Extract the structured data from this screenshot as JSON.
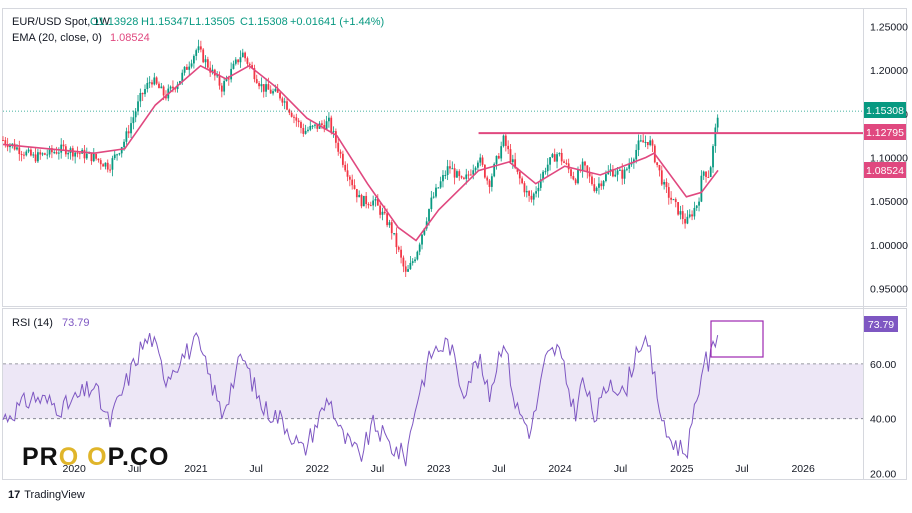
{
  "header": {
    "symbol_line": "EUR/USD Spot, 1W",
    "open": "O1.13928",
    "high": "H1.15347",
    "low": "L1.13505",
    "close": "C1.15308",
    "change": "+0.01641 (+1.44%)",
    "ema_label": "EMA (20, close, 0)",
    "ema_value": "1.08524"
  },
  "rsi_header": {
    "label": "RSI (14)",
    "value": "73.79"
  },
  "price_badges": {
    "last": "1.15308",
    "resistance": "1.12795",
    "ema": "1.08524"
  },
  "rsi_badge": "73.79",
  "branding": {
    "logo_left": "PR",
    "logo_mid": "O O",
    "logo_right": "P.CO",
    "footer": "TradingView"
  },
  "colors": {
    "up": "#089981",
    "down": "#f23645",
    "ema": "#e0487f",
    "resistance": "#e0487f",
    "rsi": "#7e57c2",
    "rsi_band": "#ede7f6",
    "last_price": "#089981"
  },
  "chart_data": [
    {
      "type": "candlestick",
      "title": "EUR/USD Spot, 1W",
      "ylim": [
        0.93,
        1.27
      ],
      "yticks": [
        "1.25000",
        "1.20000",
        "1.15000",
        "1.10000",
        "1.05000",
        "1.00000",
        "0.95000"
      ],
      "xticks": [
        "2020",
        "Jul",
        "2021",
        "Jul",
        "2022",
        "Jul",
        "2023",
        "Jul",
        "2024",
        "Jul",
        "2025",
        "Jul",
        "2026"
      ],
      "xtick_dates": [
        "2020-01-01",
        "2020-07-01",
        "2021-01-01",
        "2021-07-01",
        "2022-01-01",
        "2022-07-01",
        "2023-01-01",
        "2023-07-01",
        "2024-01-01",
        "2024-07-01",
        "2025-01-01",
        "2025-07-01",
        "2026-01-01"
      ],
      "close_path": [
        [
          "2019-06-01",
          1.12
        ],
        [
          "2019-09-01",
          1.1
        ],
        [
          "2019-12-01",
          1.11
        ],
        [
          "2020-03-01",
          1.1
        ],
        [
          "2020-04-15",
          1.09
        ],
        [
          "2020-06-01",
          1.12
        ],
        [
          "2020-07-20",
          1.17
        ],
        [
          "2020-08-20",
          1.19
        ],
        [
          "2020-10-01",
          1.17
        ],
        [
          "2020-11-15",
          1.19
        ],
        [
          "2021-01-05",
          1.225
        ],
        [
          "2021-03-20",
          1.18
        ],
        [
          "2021-05-20",
          1.22
        ],
        [
          "2021-07-20",
          1.18
        ],
        [
          "2021-09-15",
          1.17
        ],
        [
          "2021-11-20",
          1.13
        ],
        [
          "2022-02-05",
          1.14
        ],
        [
          "2022-03-15",
          1.1
        ],
        [
          "2022-05-10",
          1.05
        ],
        [
          "2022-06-20",
          1.05
        ],
        [
          "2022-08-10",
          1.02
        ],
        [
          "2022-09-25",
          0.965
        ],
        [
          "2022-10-25",
          0.99
        ],
        [
          "2022-12-10",
          1.05
        ],
        [
          "2023-02-01",
          1.09
        ],
        [
          "2023-03-15",
          1.07
        ],
        [
          "2023-05-01",
          1.1
        ],
        [
          "2023-06-01",
          1.07
        ],
        [
          "2023-07-15",
          1.12
        ],
        [
          "2023-08-20",
          1.085
        ],
        [
          "2023-10-05",
          1.05
        ],
        [
          "2023-11-20",
          1.09
        ],
        [
          "2023-12-25",
          1.105
        ],
        [
          "2024-02-15",
          1.075
        ],
        [
          "2024-03-10",
          1.09
        ],
        [
          "2024-04-15",
          1.065
        ],
        [
          "2024-06-01",
          1.085
        ],
        [
          "2024-07-10",
          1.08
        ],
        [
          "2024-08-25",
          1.115
        ],
        [
          "2024-09-25",
          1.12
        ],
        [
          "2024-11-10",
          1.065
        ],
        [
          "2024-12-20",
          1.04
        ],
        [
          "2025-01-15",
          1.025
        ],
        [
          "2025-02-20",
          1.05
        ],
        [
          "2025-03-05",
          1.085
        ],
        [
          "2025-03-25",
          1.08
        ],
        [
          "2025-04-20",
          1.15308
        ]
      ],
      "ema20_path": [
        [
          "2019-06-01",
          1.115
        ],
        [
          "2020-03-01",
          1.105
        ],
        [
          "2020-06-01",
          1.11
        ],
        [
          "2020-09-01",
          1.16
        ],
        [
          "2021-01-15",
          1.205
        ],
        [
          "2021-04-01",
          1.19
        ],
        [
          "2021-06-10",
          1.205
        ],
        [
          "2021-09-01",
          1.18
        ],
        [
          "2021-12-01",
          1.145
        ],
        [
          "2022-03-01",
          1.125
        ],
        [
          "2022-06-01",
          1.07
        ],
        [
          "2022-09-01",
          1.02
        ],
        [
          "2022-10-25",
          1.005
        ],
        [
          "2023-01-01",
          1.04
        ],
        [
          "2023-05-01",
          1.085
        ],
        [
          "2023-08-01",
          1.095
        ],
        [
          "2023-10-20",
          1.07
        ],
        [
          "2024-01-15",
          1.09
        ],
        [
          "2024-05-01",
          1.08
        ],
        [
          "2024-09-15",
          1.1
        ],
        [
          "2024-10-10",
          1.105
        ],
        [
          "2025-01-15",
          1.055
        ],
        [
          "2025-03-01",
          1.06
        ],
        [
          "2025-04-20",
          1.08524
        ]
      ],
      "resistance_line": {
        "value": 1.12795,
        "from": "2023-05-01"
      },
      "series": [
        {
          "name": "EMA (20, close, 0)",
          "last": 1.08524
        }
      ]
    },
    {
      "type": "line",
      "title": "RSI (14)",
      "ylim": [
        18,
        80
      ],
      "yticks": [
        "60.00",
        "40.00",
        "20.00"
      ],
      "band": [
        40,
        60
      ],
      "rsi_path": [
        [
          "2019-06-01",
          40
        ],
        [
          "2019-09-01",
          48
        ],
        [
          "2019-12-01",
          44
        ],
        [
          "2020-03-01",
          52
        ],
        [
          "2020-04-15",
          38
        ],
        [
          "2020-06-01",
          52
        ],
        [
          "2020-07-20",
          66
        ],
        [
          "2020-08-20",
          70
        ],
        [
          "2020-10-01",
          55
        ],
        [
          "2020-11-15",
          62
        ],
        [
          "2021-01-05",
          68
        ],
        [
          "2021-03-20",
          42
        ],
        [
          "2021-05-20",
          63
        ],
        [
          "2021-07-20",
          44
        ],
        [
          "2021-09-15",
          40
        ],
        [
          "2021-11-20",
          28
        ],
        [
          "2022-02-05",
          48
        ],
        [
          "2022-03-15",
          34
        ],
        [
          "2022-05-10",
          26
        ],
        [
          "2022-06-20",
          38
        ],
        [
          "2022-08-10",
          30
        ],
        [
          "2022-09-25",
          26
        ],
        [
          "2022-10-25",
          46
        ],
        [
          "2022-12-10",
          64
        ],
        [
          "2023-02-01",
          68
        ],
        [
          "2023-03-15",
          50
        ],
        [
          "2023-05-01",
          62
        ],
        [
          "2023-06-01",
          48
        ],
        [
          "2023-07-15",
          70
        ],
        [
          "2023-08-20",
          45
        ],
        [
          "2023-10-05",
          35
        ],
        [
          "2023-11-20",
          62
        ],
        [
          "2023-12-25",
          66
        ],
        [
          "2024-02-15",
          42
        ],
        [
          "2024-03-10",
          54
        ],
        [
          "2024-04-15",
          40
        ],
        [
          "2024-06-01",
          55
        ],
        [
          "2024-07-10",
          48
        ],
        [
          "2024-08-25",
          68
        ],
        [
          "2024-09-25",
          65
        ],
        [
          "2024-11-10",
          35
        ],
        [
          "2024-12-20",
          30
        ],
        [
          "2025-01-15",
          28
        ],
        [
          "2025-02-20",
          48
        ],
        [
          "2025-03-05",
          62
        ],
        [
          "2025-03-25",
          60
        ],
        [
          "2025-04-20",
          73.79
        ]
      ]
    }
  ]
}
